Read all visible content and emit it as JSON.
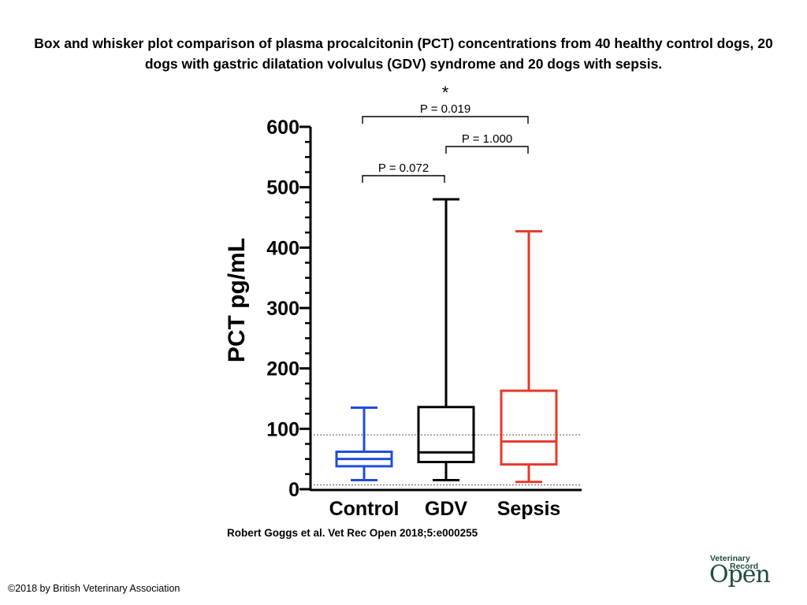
{
  "slide": {
    "title": "Box and whisker plot comparison of plasma procalcitonin (PCT) concentrations from 40 healthy control dogs, 20 dogs with gastric dilatation volvulus (GDV) syndrome and 20 dogs with sepsis.",
    "citation": "Robert Goggs et al. Vet Rec Open 2018;5:e000255",
    "copyright": "©2018 by British Veterinary Association",
    "logo": {
      "line1": "Veterinary",
      "line2": "Record",
      "line3": "Open"
    }
  },
  "chart_data": {
    "type": "box",
    "title": "",
    "ylabel": "PCT pg/mL",
    "xlabel": "",
    "ylim": [
      0,
      600
    ],
    "yticks": [
      "0",
      "100",
      "200",
      "300",
      "400",
      "500",
      "600"
    ],
    "categories": [
      "Control",
      "GDV",
      "Sepsis"
    ],
    "colors": [
      "#1f4ed8",
      "#000000",
      "#e53a2a"
    ],
    "boxes": [
      {
        "name": "Control",
        "min": 15,
        "q1": 38,
        "median": 50,
        "q3": 62,
        "max": 135
      },
      {
        "name": "GDV",
        "min": 15,
        "q1": 45,
        "median": 61,
        "q3": 136,
        "max": 480
      },
      {
        "name": "Sepsis",
        "min": 12,
        "q1": 41,
        "median": 79,
        "q3": 163,
        "max": 427
      }
    ],
    "reference_lines": [
      90,
      7
    ],
    "comparisons": [
      {
        "from": "Control",
        "to": "GDV",
        "label": "P = 0.072",
        "star": ""
      },
      {
        "from": "GDV",
        "to": "Sepsis",
        "label": "P = 1.000",
        "star": ""
      },
      {
        "from": "Control",
        "to": "Sepsis",
        "label": "P = 0.019",
        "star": "*"
      }
    ]
  }
}
